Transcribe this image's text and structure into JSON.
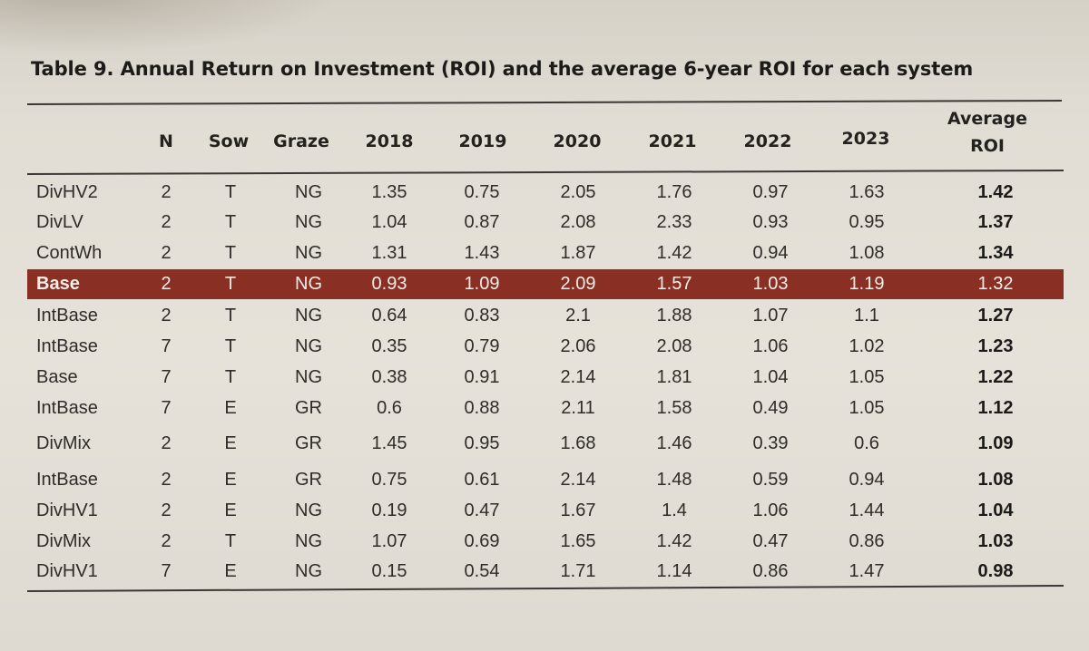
{
  "caption": "Table 9. Annual Return on Investment (ROI) and the average 6-year ROI for each system",
  "headers": {
    "n": "N",
    "sow": "Sow",
    "graze": "Graze",
    "y2018": "2018",
    "y2019": "2019",
    "y2020": "2020",
    "y2021": "2021",
    "y2022": "2022",
    "y2023": "2023",
    "avg_line1": "Average",
    "avg_line2": "ROI"
  },
  "rows": [
    {
      "system": "DivHV2",
      "n": "2",
      "sow": "T",
      "graze": "NG",
      "y2018": "1.35",
      "y2019": "0.75",
      "y2020": "2.05",
      "y2021": "1.76",
      "y2022": "0.97",
      "y2023": "1.63",
      "avg": "1.42"
    },
    {
      "system": "DivLV",
      "n": "2",
      "sow": "T",
      "graze": "NG",
      "y2018": "1.04",
      "y2019": "0.87",
      "y2020": "2.08",
      "y2021": "2.33",
      "y2022": "0.93",
      "y2023": "0.95",
      "avg": "1.37"
    },
    {
      "system": "ContWh",
      "n": "2",
      "sow": "T",
      "graze": "NG",
      "y2018": "1.31",
      "y2019": "1.43",
      "y2020": "1.87",
      "y2021": "1.42",
      "y2022": "0.94",
      "y2023": "1.08",
      "avg": "1.34"
    },
    {
      "system": "Base",
      "n": "2",
      "sow": "T",
      "graze": "NG",
      "y2018": "0.93",
      "y2019": "1.09",
      "y2020": "2.09",
      "y2021": "1.57",
      "y2022": "1.03",
      "y2023": "1.19",
      "avg": "1.32",
      "highlight": true
    },
    {
      "system": "IntBase",
      "n": "2",
      "sow": "T",
      "graze": "NG",
      "y2018": "0.64",
      "y2019": "0.83",
      "y2020": "2.1",
      "y2021": "1.88",
      "y2022": "1.07",
      "y2023": "1.1",
      "avg": "1.27"
    },
    {
      "system": "IntBase",
      "n": "7",
      "sow": "T",
      "graze": "NG",
      "y2018": "0.35",
      "y2019": "0.79",
      "y2020": "2.06",
      "y2021": "2.08",
      "y2022": "1.06",
      "y2023": "1.02",
      "avg": "1.23"
    },
    {
      "system": "Base",
      "n": "7",
      "sow": "T",
      "graze": "NG",
      "y2018": "0.38",
      "y2019": "0.91",
      "y2020": "2.14",
      "y2021": "1.81",
      "y2022": "1.04",
      "y2023": "1.05",
      "avg": "1.22"
    },
    {
      "system": "IntBase",
      "n": "7",
      "sow": "E",
      "graze": "GR",
      "y2018": "0.6",
      "y2019": "0.88",
      "y2020": "2.11",
      "y2021": "1.58",
      "y2022": "0.49",
      "y2023": "1.05",
      "avg": "1.12"
    },
    {
      "system": "DivMix",
      "n": "2",
      "sow": "E",
      "graze": "GR",
      "y2018": "1.45",
      "y2019": "0.95",
      "y2020": "1.68",
      "y2021": "1.46",
      "y2022": "0.39",
      "y2023": "0.6",
      "avg": "1.09"
    },
    {
      "system": "IntBase",
      "n": "2",
      "sow": "E",
      "graze": "GR",
      "y2018": "0.75",
      "y2019": "0.61",
      "y2020": "2.14",
      "y2021": "1.48",
      "y2022": "0.59",
      "y2023": "0.94",
      "avg": "1.08"
    },
    {
      "system": "DivHV1",
      "n": "2",
      "sow": "E",
      "graze": "NG",
      "y2018": "0.19",
      "y2019": "0.47",
      "y2020": "1.67",
      "y2021": "1.4",
      "y2022": "1.06",
      "y2023": "1.44",
      "avg": "1.04"
    },
    {
      "system": "DivMix",
      "n": "2",
      "sow": "T",
      "graze": "NG",
      "y2018": "1.07",
      "y2019": "0.69",
      "y2020": "1.65",
      "y2021": "1.42",
      "y2022": "0.47",
      "y2023": "0.86",
      "avg": "1.03"
    },
    {
      "system": "DivHV1",
      "n": "7",
      "sow": "E",
      "graze": "NG",
      "y2018": "0.15",
      "y2019": "0.54",
      "y2020": "1.71",
      "y2021": "1.14",
      "y2022": "0.86",
      "y2023": "1.47",
      "avg": "0.98"
    }
  ],
  "colors": {
    "highlight_row": "#8a2f24",
    "paper": "#e3dfd6",
    "ink": "#2c2a27"
  }
}
